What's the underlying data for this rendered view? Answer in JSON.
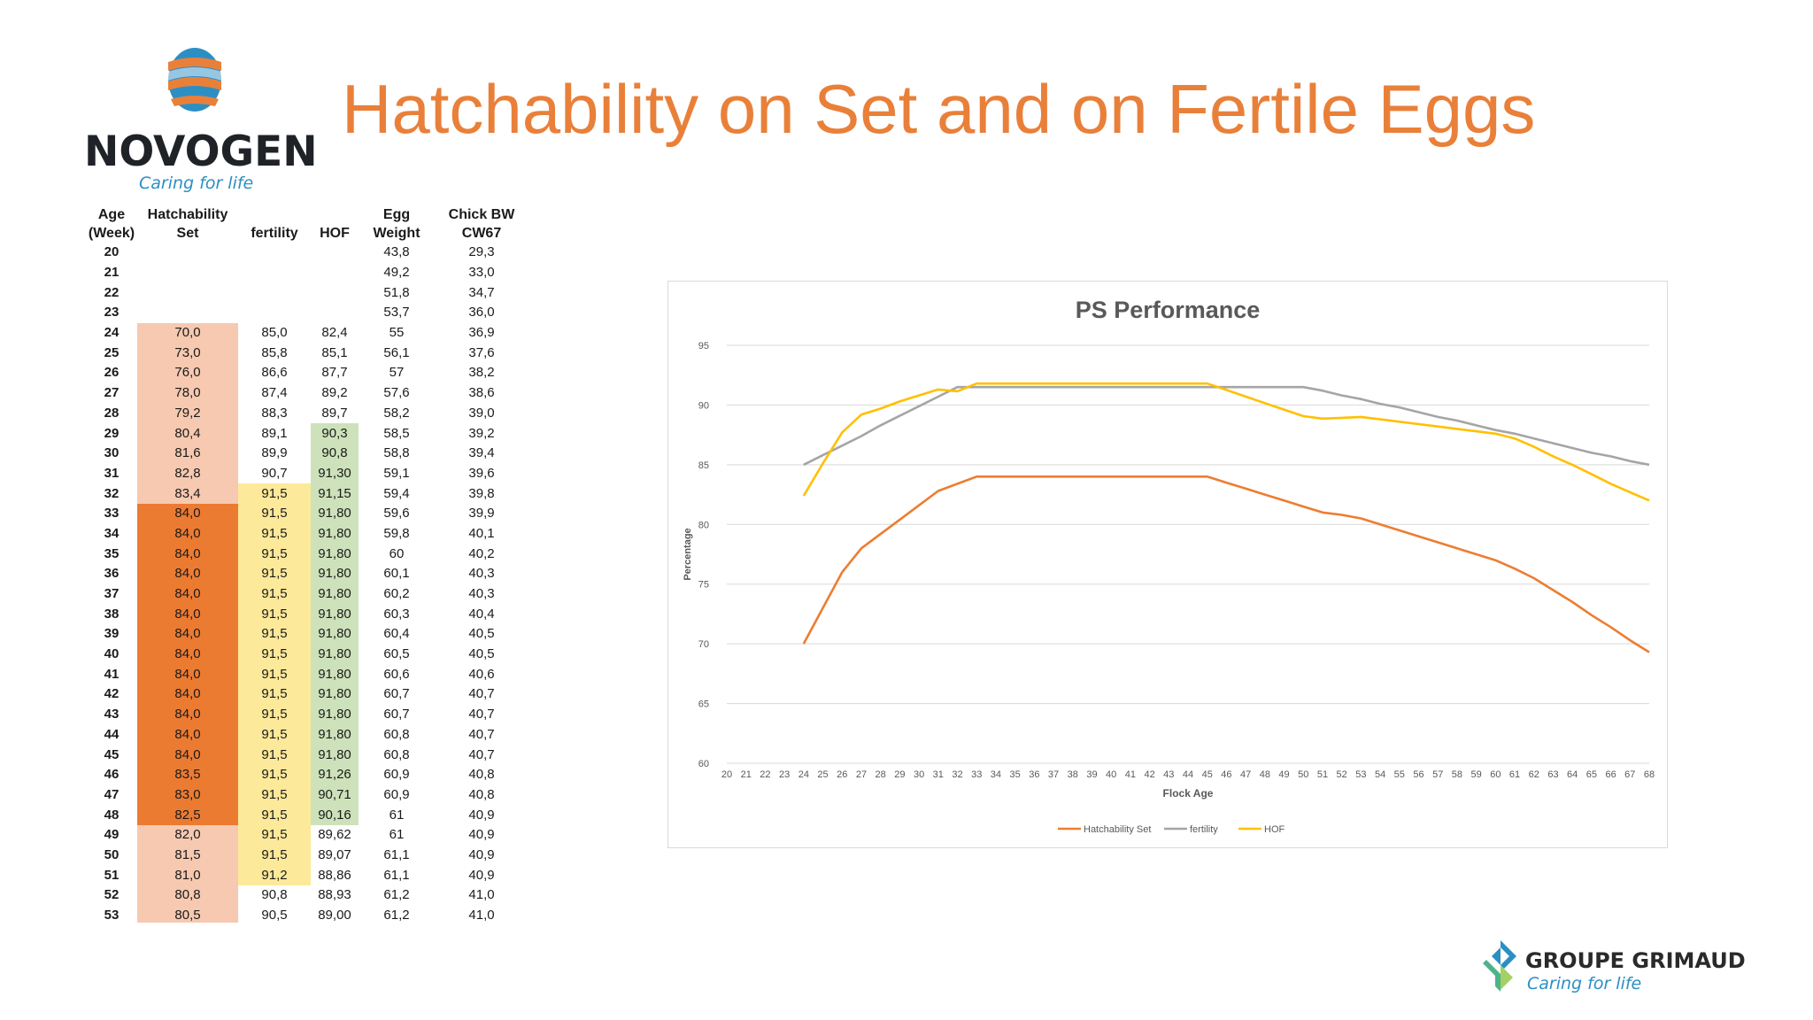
{
  "brand": {
    "name": "NOVOGEN",
    "tagline": "Caring for life"
  },
  "title": "Hatchability on Set and on Fertile Eggs",
  "table": {
    "headers": [
      [
        "Age",
        "(Week)"
      ],
      [
        "Hatchability",
        "Set"
      ],
      [
        "",
        "fertility"
      ],
      [
        "",
        "HOF"
      ],
      [
        "Egg",
        "Weight"
      ],
      [
        "Chick BW",
        "CW67"
      ]
    ],
    "rows": [
      [
        "20",
        "",
        "",
        "",
        "43,8",
        "29,3"
      ],
      [
        "21",
        "",
        "",
        "",
        "49,2",
        "33,0"
      ],
      [
        "22",
        "",
        "",
        "",
        "51,8",
        "34,7"
      ],
      [
        "23",
        "",
        "",
        "",
        "53,7",
        "36,0"
      ],
      [
        "24",
        "70,0",
        "85,0",
        "82,4",
        "55",
        "36,9"
      ],
      [
        "25",
        "73,0",
        "85,8",
        "85,1",
        "56,1",
        "37,6"
      ],
      [
        "26",
        "76,0",
        "86,6",
        "87,7",
        "57",
        "38,2"
      ],
      [
        "27",
        "78,0",
        "87,4",
        "89,2",
        "57,6",
        "38,6"
      ],
      [
        "28",
        "79,2",
        "88,3",
        "89,7",
        "58,2",
        "39,0"
      ],
      [
        "29",
        "80,4",
        "89,1",
        "90,3",
        "58,5",
        "39,2"
      ],
      [
        "30",
        "81,6",
        "89,9",
        "90,8",
        "58,8",
        "39,4"
      ],
      [
        "31",
        "82,8",
        "90,7",
        "91,30",
        "59,1",
        "39,6"
      ],
      [
        "32",
        "83,4",
        "91,5",
        "91,15",
        "59,4",
        "39,8"
      ],
      [
        "33",
        "84,0",
        "91,5",
        "91,80",
        "59,6",
        "39,9"
      ],
      [
        "34",
        "84,0",
        "91,5",
        "91,80",
        "59,8",
        "40,1"
      ],
      [
        "35",
        "84,0",
        "91,5",
        "91,80",
        "60",
        "40,2"
      ],
      [
        "36",
        "84,0",
        "91,5",
        "91,80",
        "60,1",
        "40,3"
      ],
      [
        "37",
        "84,0",
        "91,5",
        "91,80",
        "60,2",
        "40,3"
      ],
      [
        "38",
        "84,0",
        "91,5",
        "91,80",
        "60,3",
        "40,4"
      ],
      [
        "39",
        "84,0",
        "91,5",
        "91,80",
        "60,4",
        "40,5"
      ],
      [
        "40",
        "84,0",
        "91,5",
        "91,80",
        "60,5",
        "40,5"
      ],
      [
        "41",
        "84,0",
        "91,5",
        "91,80",
        "60,6",
        "40,6"
      ],
      [
        "42",
        "84,0",
        "91,5",
        "91,80",
        "60,7",
        "40,7"
      ],
      [
        "43",
        "84,0",
        "91,5",
        "91,80",
        "60,7",
        "40,7"
      ],
      [
        "44",
        "84,0",
        "91,5",
        "91,80",
        "60,8",
        "40,7"
      ],
      [
        "45",
        "84,0",
        "91,5",
        "91,80",
        "60,8",
        "40,7"
      ],
      [
        "46",
        "83,5",
        "91,5",
        "91,26",
        "60,9",
        "40,8"
      ],
      [
        "47",
        "83,0",
        "91,5",
        "90,71",
        "60,9",
        "40,8"
      ],
      [
        "48",
        "82,5",
        "91,5",
        "90,16",
        "61",
        "40,9"
      ],
      [
        "49",
        "82,0",
        "91,5",
        "89,62",
        "61",
        "40,9"
      ],
      [
        "50",
        "81,5",
        "91,5",
        "89,07",
        "61,1",
        "40,9"
      ],
      [
        "51",
        "81,0",
        "91,2",
        "88,86",
        "61,1",
        "40,9"
      ],
      [
        "52",
        "80,8",
        "90,8",
        "88,93",
        "61,2",
        "41,0"
      ],
      [
        "53",
        "80,5",
        "90,5",
        "89,00",
        "61,2",
        "41,0"
      ]
    ]
  },
  "colors": {
    "hatchability_light": "#f6c9b0",
    "hatchability_dark": "#ec7b32",
    "fertility_highlight": "#fde99a",
    "hof_highlight": "#cde2ba",
    "title": "#e9803a",
    "series_hatchability": "#ed7d31",
    "series_fertility": "#a5a5a5",
    "series_hof": "#ffc000"
  },
  "chart_data": {
    "type": "line",
    "title": "PS Performance",
    "xlabel": "Flock Age",
    "ylabel": "Percentage",
    "ylim": [
      60,
      95
    ],
    "yticks": [
      60,
      65,
      70,
      75,
      80,
      85,
      90,
      95
    ],
    "grid": true,
    "legend": "bottom",
    "x": [
      20,
      21,
      22,
      23,
      24,
      25,
      26,
      27,
      28,
      29,
      30,
      31,
      32,
      33,
      34,
      35,
      36,
      37,
      38,
      39,
      40,
      41,
      42,
      43,
      44,
      45,
      46,
      47,
      48,
      49,
      50,
      51,
      52,
      53,
      54,
      55,
      56,
      57,
      58,
      59,
      60,
      61,
      62,
      63,
      64,
      65,
      66,
      67,
      68
    ],
    "series": [
      {
        "name": "Hatchability Set",
        "color": "#ed7d31",
        "values": [
          null,
          null,
          null,
          null,
          70.0,
          73.0,
          76.0,
          78.0,
          79.2,
          80.4,
          81.6,
          82.8,
          83.4,
          84.0,
          84.0,
          84.0,
          84.0,
          84.0,
          84.0,
          84.0,
          84.0,
          84.0,
          84.0,
          84.0,
          84.0,
          84.0,
          83.5,
          83.0,
          82.5,
          82.0,
          81.5,
          81.0,
          80.8,
          80.5,
          80.0,
          79.5,
          79.0,
          78.5,
          78.0,
          77.5,
          77.0,
          76.3,
          75.5,
          74.5,
          73.5,
          72.4,
          71.4,
          70.3,
          69.3
        ]
      },
      {
        "name": "fertility",
        "color": "#a5a5a5",
        "values": [
          null,
          null,
          null,
          null,
          85.0,
          85.8,
          86.6,
          87.4,
          88.3,
          89.1,
          89.9,
          90.7,
          91.5,
          91.5,
          91.5,
          91.5,
          91.5,
          91.5,
          91.5,
          91.5,
          91.5,
          91.5,
          91.5,
          91.5,
          91.5,
          91.5,
          91.5,
          91.5,
          91.5,
          91.5,
          91.5,
          91.2,
          90.8,
          90.5,
          90.1,
          89.8,
          89.4,
          89.0,
          88.7,
          88.3,
          87.9,
          87.6,
          87.2,
          86.8,
          86.4,
          86.0,
          85.7,
          85.3,
          85.0
        ]
      },
      {
        "name": "HOF",
        "color": "#ffc000",
        "values": [
          null,
          null,
          null,
          null,
          82.4,
          85.1,
          87.7,
          89.2,
          89.7,
          90.3,
          90.8,
          91.3,
          91.15,
          91.8,
          91.8,
          91.8,
          91.8,
          91.8,
          91.8,
          91.8,
          91.8,
          91.8,
          91.8,
          91.8,
          91.8,
          91.8,
          91.26,
          90.71,
          90.16,
          89.62,
          89.07,
          88.86,
          88.93,
          89.0,
          88.8,
          88.6,
          88.4,
          88.2,
          88.0,
          87.8,
          87.6,
          87.2,
          86.5,
          85.7,
          85.0,
          84.2,
          83.4,
          82.7,
          82.0
        ]
      }
    ]
  },
  "footer": {
    "name": "GROUPE GRIMAUD",
    "tagline": "Caring for life"
  }
}
